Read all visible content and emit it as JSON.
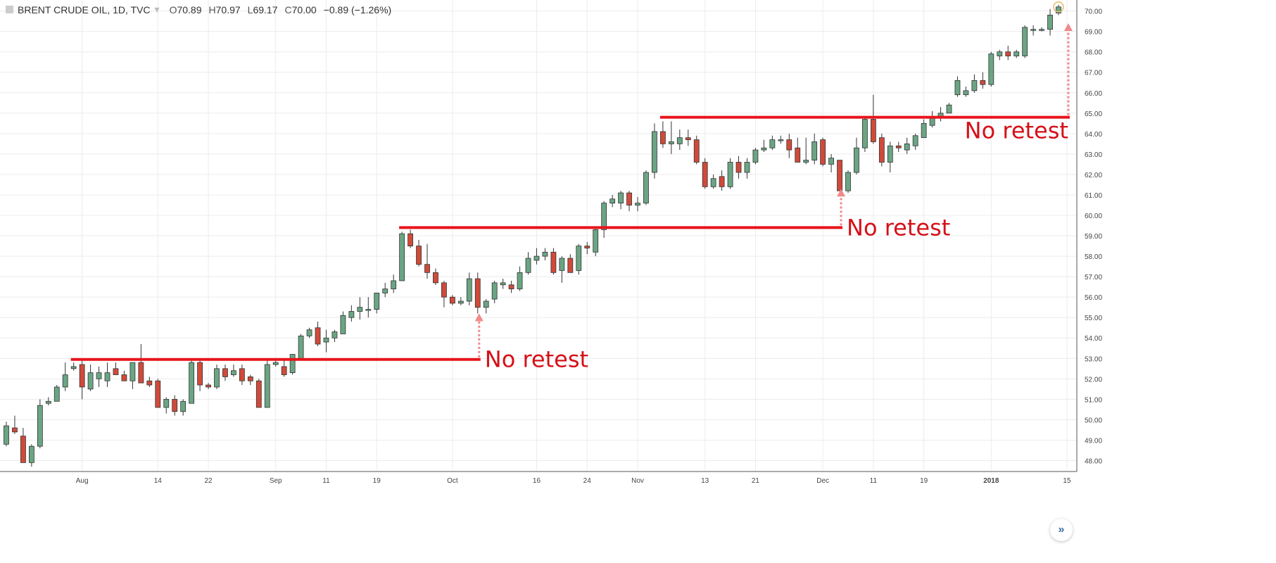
{
  "header": {
    "symbol": "BRENT CRUDE OIL, 1D, TVC",
    "open_label": "O",
    "open": "70.89",
    "high_label": "H",
    "high": "70.97",
    "low_label": "L",
    "low": "69.17",
    "close_label": "C",
    "close": "70.00",
    "change": "−0.89 (−1.26%)"
  },
  "colors": {
    "up": "#6aa584",
    "down": "#d04a3a",
    "level_line": "#e8141b",
    "annotation_text": "#d51018",
    "arrow": "#f08a8a",
    "grid": "#ececec"
  },
  "chart_data": {
    "type": "candlestick",
    "title": "",
    "ylim": [
      47.5,
      70.4
    ],
    "y_ticks": [
      "48.00",
      "49.00",
      "50.00",
      "51.00",
      "52.00",
      "53.00",
      "54.00",
      "55.00",
      "56.00",
      "57.00",
      "58.00",
      "59.00",
      "60.00",
      "61.00",
      "62.00",
      "63.00",
      "64.00",
      "65.00",
      "66.00",
      "67.00",
      "68.00",
      "69.00",
      "70.00"
    ],
    "x_ticks": [
      {
        "label": "Aug",
        "index": 9
      },
      {
        "label": "14",
        "index": 18
      },
      {
        "label": "22",
        "index": 24
      },
      {
        "label": "Sep",
        "index": 32
      },
      {
        "label": "11",
        "index": 38
      },
      {
        "label": "19",
        "index": 44
      },
      {
        "label": "Oct",
        "index": 53
      },
      {
        "label": "16",
        "index": 63
      },
      {
        "label": "24",
        "index": 69
      },
      {
        "label": "Nov",
        "index": 75
      },
      {
        "label": "13",
        "index": 83
      },
      {
        "label": "21",
        "index": 89
      },
      {
        "label": "Dec",
        "index": 97
      },
      {
        "label": "11",
        "index": 103
      },
      {
        "label": "19",
        "index": 109
      },
      {
        "label": "2018",
        "index": 117
      },
      {
        "label": "15",
        "index": 126
      }
    ],
    "grid": true,
    "candles": [
      [
        48.8,
        49.7,
        48.7,
        49.9
      ],
      [
        49.6,
        49.4,
        49.3,
        50.2
      ],
      [
        49.2,
        47.9,
        47.9,
        49.6
      ],
      [
        47.9,
        48.7,
        47.7,
        48.8
      ],
      [
        48.7,
        50.7,
        48.6,
        51.0
      ],
      [
        50.8,
        50.9,
        50.7,
        51.1
      ],
      [
        50.9,
        51.6,
        50.9,
        51.7
      ],
      [
        51.6,
        52.2,
        51.4,
        52.8
      ],
      [
        52.5,
        52.6,
        52.4,
        52.8
      ],
      [
        52.7,
        51.6,
        51.0,
        52.9
      ],
      [
        51.5,
        52.3,
        51.4,
        52.7
      ],
      [
        52.0,
        52.3,
        51.6,
        52.6
      ],
      [
        51.9,
        52.3,
        51.6,
        52.8
      ],
      [
        52.5,
        52.2,
        52.2,
        52.8
      ],
      [
        52.2,
        51.9,
        51.9,
        52.4
      ],
      [
        51.9,
        52.8,
        51.5,
        52.8
      ],
      [
        52.8,
        51.8,
        51.8,
        53.7
      ],
      [
        51.9,
        51.7,
        51.6,
        52.1
      ],
      [
        51.9,
        50.6,
        50.6,
        52.0
      ],
      [
        50.6,
        51.0,
        50.3,
        51.1
      ],
      [
        51.0,
        50.4,
        50.2,
        51.2
      ],
      [
        50.4,
        50.9,
        50.2,
        51.0
      ],
      [
        50.8,
        52.8,
        50.8,
        52.9
      ],
      [
        52.8,
        51.7,
        51.4,
        52.9
      ],
      [
        51.7,
        51.6,
        51.5,
        51.8
      ],
      [
        51.6,
        52.5,
        51.5,
        52.7
      ],
      [
        52.5,
        52.1,
        51.9,
        52.7
      ],
      [
        52.2,
        52.4,
        52.1,
        52.7
      ],
      [
        52.5,
        51.9,
        51.7,
        52.7
      ],
      [
        52.1,
        51.9,
        51.7,
        52.2
      ],
      [
        51.9,
        50.6,
        50.6,
        52.0
      ],
      [
        50.6,
        52.7,
        50.6,
        52.9
      ],
      [
        52.7,
        52.8,
        52.6,
        52.9
      ],
      [
        52.6,
        52.2,
        52.1,
        52.9
      ],
      [
        52.3,
        53.2,
        52.2,
        53.2
      ],
      [
        53.0,
        54.1,
        53.0,
        54.2
      ],
      [
        54.1,
        54.4,
        54.0,
        54.5
      ],
      [
        54.5,
        53.7,
        53.6,
        54.8
      ],
      [
        53.8,
        54.0,
        53.3,
        54.4
      ],
      [
        54.0,
        54.3,
        53.8,
        54.4
      ],
      [
        54.2,
        55.1,
        54.2,
        55.3
      ],
      [
        55.0,
        55.3,
        54.8,
        55.6
      ],
      [
        55.3,
        55.5,
        54.9,
        56.0
      ],
      [
        55.4,
        55.4,
        55.0,
        56.0
      ],
      [
        55.4,
        56.2,
        55.2,
        56.2
      ],
      [
        56.2,
        56.4,
        56.0,
        56.7
      ],
      [
        56.4,
        56.8,
        56.2,
        57.1
      ],
      [
        56.8,
        59.1,
        56.8,
        59.2
      ],
      [
        59.1,
        58.5,
        58.4,
        59.3
      ],
      [
        58.5,
        57.6,
        57.5,
        58.8
      ],
      [
        57.6,
        57.2,
        56.9,
        58.6
      ],
      [
        57.2,
        56.7,
        56.6,
        57.4
      ],
      [
        56.7,
        56.0,
        55.5,
        56.8
      ],
      [
        56.0,
        55.7,
        55.6,
        56.1
      ],
      [
        55.7,
        55.8,
        55.6,
        56.0
      ],
      [
        55.8,
        56.9,
        55.6,
        57.2
      ],
      [
        56.9,
        55.5,
        55.2,
        57.2
      ],
      [
        55.5,
        55.8,
        55.2,
        55.9
      ],
      [
        55.9,
        56.7,
        55.7,
        56.8
      ],
      [
        56.6,
        56.7,
        56.4,
        56.9
      ],
      [
        56.6,
        56.4,
        56.2,
        56.8
      ],
      [
        56.4,
        57.2,
        56.3,
        57.5
      ],
      [
        57.2,
        57.9,
        57.1,
        58.2
      ],
      [
        57.8,
        58.0,
        57.6,
        58.4
      ],
      [
        58.0,
        58.2,
        57.8,
        58.4
      ],
      [
        58.2,
        57.2,
        57.1,
        58.4
      ],
      [
        57.3,
        57.9,
        56.7,
        58.0
      ],
      [
        57.9,
        57.2,
        57.2,
        58.1
      ],
      [
        57.3,
        58.5,
        57.1,
        58.6
      ],
      [
        58.5,
        58.4,
        58.1,
        58.7
      ],
      [
        58.2,
        59.3,
        58.0,
        59.4
      ],
      [
        59.3,
        60.6,
        58.9,
        60.7
      ],
      [
        60.6,
        60.8,
        60.4,
        61.0
      ],
      [
        60.6,
        61.1,
        60.3,
        61.2
      ],
      [
        61.1,
        60.5,
        60.2,
        61.2
      ],
      [
        60.5,
        60.6,
        60.2,
        60.9
      ],
      [
        60.6,
        62.1,
        60.5,
        62.2
      ],
      [
        62.1,
        64.1,
        61.8,
        64.5
      ],
      [
        64.1,
        63.5,
        63.3,
        64.6
      ],
      [
        63.5,
        63.6,
        63.0,
        64.6
      ],
      [
        63.5,
        63.8,
        63.2,
        64.2
      ],
      [
        63.8,
        63.7,
        63.4,
        64.2
      ],
      [
        63.7,
        62.6,
        62.5,
        63.9
      ],
      [
        62.6,
        61.4,
        61.3,
        62.8
      ],
      [
        61.4,
        61.8,
        61.3,
        62.0
      ],
      [
        61.9,
        61.4,
        61.2,
        62.2
      ],
      [
        61.4,
        62.6,
        61.3,
        62.8
      ],
      [
        62.6,
        62.1,
        61.8,
        62.9
      ],
      [
        62.1,
        62.6,
        61.8,
        62.8
      ],
      [
        62.6,
        63.2,
        62.5,
        63.3
      ],
      [
        63.2,
        63.3,
        63.1,
        63.7
      ],
      [
        63.3,
        63.7,
        63.2,
        63.9
      ],
      [
        63.7,
        63.7,
        63.5,
        63.9
      ],
      [
        63.7,
        63.2,
        62.8,
        64.0
      ],
      [
        63.3,
        62.6,
        62.6,
        63.8
      ],
      [
        62.6,
        62.7,
        62.5,
        63.8
      ],
      [
        62.7,
        63.6,
        62.5,
        64.0
      ],
      [
        63.7,
        62.5,
        62.4,
        63.8
      ],
      [
        62.5,
        62.8,
        62.1,
        63.0
      ],
      [
        62.7,
        61.2,
        61.2,
        62.7
      ],
      [
        61.2,
        62.1,
        61.1,
        62.2
      ],
      [
        62.1,
        63.3,
        62.0,
        63.8
      ],
      [
        63.3,
        64.7,
        63.1,
        64.8
      ],
      [
        64.7,
        63.6,
        63.5,
        65.9
      ],
      [
        63.8,
        62.6,
        62.4,
        64.0
      ],
      [
        62.6,
        63.4,
        62.1,
        63.6
      ],
      [
        63.4,
        63.3,
        63.1,
        63.6
      ],
      [
        63.2,
        63.5,
        63.0,
        63.8
      ],
      [
        63.4,
        63.9,
        63.2,
        64.0
      ],
      [
        63.8,
        64.5,
        63.8,
        64.7
      ],
      [
        64.4,
        64.8,
        64.3,
        65.1
      ],
      [
        64.8,
        65.0,
        64.6,
        65.3
      ],
      [
        65.0,
        65.4,
        65.0,
        65.5
      ],
      [
        65.9,
        66.6,
        65.8,
        66.8
      ],
      [
        65.9,
        66.1,
        65.8,
        66.3
      ],
      [
        66.1,
        66.6,
        66.0,
        66.9
      ],
      [
        66.6,
        66.4,
        66.2,
        67.0
      ],
      [
        66.4,
        67.9,
        66.3,
        68.0
      ],
      [
        67.8,
        68.0,
        67.6,
        68.1
      ],
      [
        68.0,
        67.8,
        67.6,
        68.3
      ],
      [
        67.8,
        68.0,
        67.7,
        68.1
      ],
      [
        67.8,
        69.2,
        67.7,
        69.3
      ],
      [
        69.1,
        69.1,
        68.8,
        69.3
      ],
      [
        69.1,
        69.1,
        69.0,
        69.2
      ],
      [
        69.1,
        69.8,
        68.8,
        70.1
      ],
      [
        69.9,
        70.2,
        69.8,
        70.3
      ]
    ],
    "levels": [
      {
        "value": 52.95,
        "from": 8,
        "to": 56
      },
      {
        "value": 59.4,
        "from": 47,
        "to": 99
      },
      {
        "value": 64.8,
        "from": 78,
        "to": 126
      }
    ],
    "annotations": [
      {
        "text": "No retest",
        "level": 0,
        "arrow_from": 52.95,
        "arrow_to": 55.2
      },
      {
        "text": "No retest",
        "level": 1,
        "arrow_from": 59.4,
        "arrow_to": 61.3
      },
      {
        "text": "No retest",
        "level": 2,
        "arrow_from": 64.8,
        "arrow_to": 69.4
      }
    ]
  }
}
